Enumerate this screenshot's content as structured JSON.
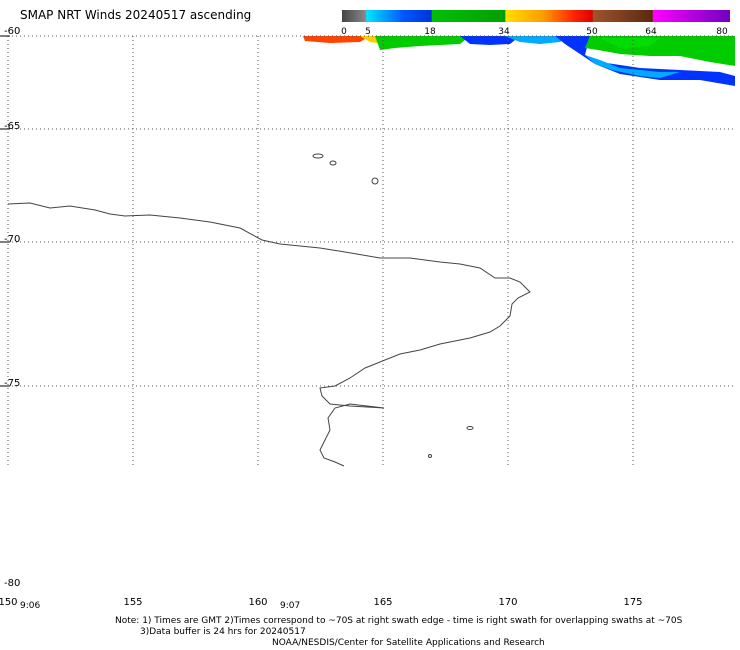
{
  "title": "SMAP NRT Winds 20240517 ascending",
  "colorbar": {
    "tick_labels": [
      "0",
      "5",
      "18",
      "34",
      "50",
      "64",
      "80"
    ],
    "colors": [
      "#555555",
      "#00bfff",
      "#00c800",
      "#ffe600",
      "#ff8000",
      "#e00000",
      "#8b4513",
      "#ff00ff",
      "#8000ff"
    ]
  },
  "latitudes": [
    "-60",
    "-65",
    "-70",
    "-75",
    "-80"
  ],
  "longitudes": [
    "150",
    "155",
    "160",
    "165",
    "170",
    "175"
  ],
  "times": [
    "9:06",
    "9:07"
  ],
  "notes": {
    "line1": "Note: 1) Times are GMT 2)Times correspond to ~70S at right swath edge - time is right swath for overlapping swaths at ~70S",
    "line2": "3)Data buffer is 24 hrs for 20240517",
    "line3": "NOAA/NESDIS/Center for Satellite Applications and Research"
  },
  "map": {
    "land_color": "#ffffff",
    "coast_color": "#444444",
    "swath_colors": [
      "#00cc00",
      "#0033ff",
      "#00aaff",
      "#ff4400",
      "#ffcc00"
    ]
  }
}
